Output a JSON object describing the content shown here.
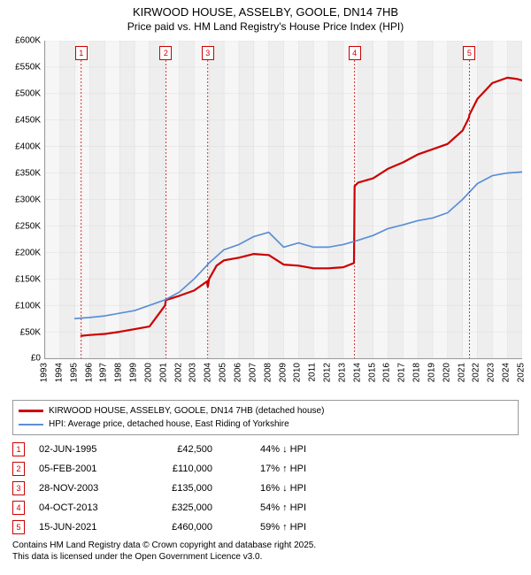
{
  "title": {
    "main": "KIRWOOD HOUSE, ASSELBY, GOOLE, DN14 7HB",
    "sub": "Price paid vs. HM Land Registry's House Price Index (HPI)"
  },
  "chart": {
    "type": "line",
    "background_color": "#f6f6f6",
    "grid_color": "#dddddd",
    "vband_color": "#eeeeee",
    "axis_fontsize": 10,
    "title_fontsize": 13,
    "x": {
      "min": 1993,
      "max": 2025,
      "step": 1
    },
    "y": {
      "min": 0,
      "max": 600000,
      "step": 50000,
      "label_prefix": "£",
      "label_suffix": "K",
      "label_divisor": 1000
    },
    "series": [
      {
        "name": "KIRWOOD HOUSE, ASSELBY, GOOLE, DN14 7HB (detached house)",
        "color": "#cc0000",
        "width": 2.2,
        "points": [
          [
            1995.42,
            42500
          ],
          [
            1996,
            44000
          ],
          [
            1997,
            46000
          ],
          [
            1998,
            50000
          ],
          [
            1999,
            55000
          ],
          [
            2000,
            60000
          ],
          [
            2001.05,
            100000
          ],
          [
            2001.1,
            110000
          ],
          [
            2002,
            118000
          ],
          [
            2003,
            128000
          ],
          [
            2003.85,
            145000
          ],
          [
            2003.91,
            135000
          ],
          [
            2004,
            150000
          ],
          [
            2004.5,
            175000
          ],
          [
            2005,
            185000
          ],
          [
            2006,
            190000
          ],
          [
            2007,
            197000
          ],
          [
            2008,
            195000
          ],
          [
            2009,
            177000
          ],
          [
            2010,
            175000
          ],
          [
            2011,
            170000
          ],
          [
            2012,
            170000
          ],
          [
            2013,
            172000
          ],
          [
            2013.72,
            180000
          ],
          [
            2013.76,
            325000
          ],
          [
            2014,
            332000
          ],
          [
            2015,
            340000
          ],
          [
            2016,
            358000
          ],
          [
            2017,
            370000
          ],
          [
            2018,
            385000
          ],
          [
            2019,
            395000
          ],
          [
            2020,
            405000
          ],
          [
            2021,
            430000
          ],
          [
            2021.44,
            455000
          ],
          [
            2021.46,
            460000
          ],
          [
            2022,
            490000
          ],
          [
            2023,
            520000
          ],
          [
            2024,
            530000
          ],
          [
            2024.6,
            528000
          ],
          [
            2025,
            525000
          ]
        ]
      },
      {
        "name": "HPI: Average price, detached house, East Riding of Yorkshire",
        "color": "#5b8fd6",
        "width": 1.7,
        "points": [
          [
            1995,
            75000
          ],
          [
            1996,
            77000
          ],
          [
            1997,
            80000
          ],
          [
            1998,
            85000
          ],
          [
            1999,
            90000
          ],
          [
            2000,
            100000
          ],
          [
            2001,
            110000
          ],
          [
            2002,
            125000
          ],
          [
            2003,
            150000
          ],
          [
            2004,
            180000
          ],
          [
            2005,
            205000
          ],
          [
            2006,
            215000
          ],
          [
            2007,
            230000
          ],
          [
            2008,
            238000
          ],
          [
            2009,
            210000
          ],
          [
            2010,
            218000
          ],
          [
            2011,
            210000
          ],
          [
            2012,
            210000
          ],
          [
            2013,
            215000
          ],
          [
            2014,
            223000
          ],
          [
            2015,
            232000
          ],
          [
            2016,
            245000
          ],
          [
            2017,
            252000
          ],
          [
            2018,
            260000
          ],
          [
            2019,
            265000
          ],
          [
            2020,
            275000
          ],
          [
            2021,
            300000
          ],
          [
            2022,
            330000
          ],
          [
            2023,
            345000
          ],
          [
            2024,
            350000
          ],
          [
            2025,
            352000
          ]
        ]
      }
    ],
    "markers": [
      {
        "n": "1",
        "year": 1995.42
      },
      {
        "n": "2",
        "year": 2001.1
      },
      {
        "n": "3",
        "year": 2003.91
      },
      {
        "n": "4",
        "year": 2013.76
      },
      {
        "n": "5",
        "year": 2021.46
      }
    ]
  },
  "legend": {
    "items": [
      {
        "color": "#cc0000",
        "width": 3,
        "label": "KIRWOOD HOUSE, ASSELBY, GOOLE, DN14 7HB (detached house)"
      },
      {
        "color": "#5b8fd6",
        "width": 2,
        "label": "HPI: Average price, detached house, East Riding of Yorkshire"
      }
    ]
  },
  "events": [
    {
      "n": "1",
      "date": "02-JUN-1995",
      "price": "£42,500",
      "delta": "44% ↓ HPI"
    },
    {
      "n": "2",
      "date": "05-FEB-2001",
      "price": "£110,000",
      "delta": "17% ↑ HPI"
    },
    {
      "n": "3",
      "date": "28-NOV-2003",
      "price": "£135,000",
      "delta": "16% ↓ HPI"
    },
    {
      "n": "4",
      "date": "04-OCT-2013",
      "price": "£325,000",
      "delta": "54% ↑ HPI"
    },
    {
      "n": "5",
      "date": "15-JUN-2021",
      "price": "£460,000",
      "delta": "59% ↑ HPI"
    }
  ],
  "footer": {
    "line1": "Contains HM Land Registry data © Crown copyright and database right 2025.",
    "line2": "This data is licensed under the Open Government Licence v3.0."
  }
}
